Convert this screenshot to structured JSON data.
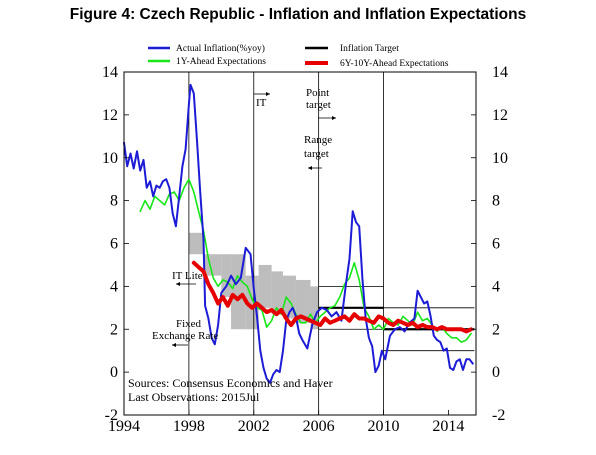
{
  "title": "Figure 4: Czech Republic - Inflation and Inflation Expectations",
  "colors": {
    "actual": "#1c1cd6",
    "expect1y": "#19e619",
    "target": "#000000",
    "expect6_10": "#e60000",
    "band": "#bdbdbd"
  },
  "chart_data": {
    "type": "line",
    "xlim": [
      1994,
      2015.7
    ],
    "ylim": [
      -2,
      14
    ],
    "x_ticks": [
      "1994",
      "1998",
      "2002",
      "2006",
      "2010",
      "2014"
    ],
    "y_ticks_left": [
      "14",
      "12",
      "10",
      "8",
      "6",
      "4",
      "2",
      "0",
      "-2"
    ],
    "y_ticks_right": [
      "14",
      "12",
      "10",
      "8",
      "6",
      "4",
      "2",
      "0",
      "-2"
    ],
    "legend": {
      "actual": "Actual Inflation(%yoy)",
      "expect1y": "1Y-Ahead Expectations",
      "target": "Inflation Target",
      "expect6_10": "6Y-10Y-Ahead Expectations"
    },
    "annotations": {
      "it": "IT",
      "point_target_1": "Point",
      "point_target_2": "target",
      "range_target_1": "Range",
      "range_target_2": "target",
      "it_lite": "IT Lite",
      "fixed_1": "Fixed",
      "fixed_2": "Exchange Rate",
      "sources": "Sources: Consensus Economics and Haver",
      "last_obs": "Last Observations: 2015Jul"
    },
    "vertical_lines": [
      1998,
      2002,
      2006,
      2010
    ],
    "target_bands": [
      {
        "x0": 1998.0,
        "x1": 1998.9,
        "y0": 5.5,
        "y1": 6.5
      },
      {
        "x0": 1998.9,
        "x1": 2000.0,
        "y0": 4.5,
        "y1": 5.5
      },
      {
        "x0": 2000.0,
        "x1": 2000.6,
        "y0": 3.5,
        "y1": 5.5
      },
      {
        "x0": 2000.6,
        "x1": 2001.5,
        "y0": 2.0,
        "y1": 5.5
      },
      {
        "x0": 2001.5,
        "x1": 2002.3,
        "y0": 2.0,
        "y1": 4.5
      },
      {
        "x0": 2002.3,
        "x1": 2003.1,
        "y0": 3.0,
        "y1": 5.0
      },
      {
        "x0": 2003.1,
        "x1": 2003.8,
        "y0": 2.7,
        "y1": 4.7
      },
      {
        "x0": 2003.8,
        "x1": 2004.6,
        "y0": 2.5,
        "y1": 4.5
      },
      {
        "x0": 2004.6,
        "x1": 2005.5,
        "y0": 2.3,
        "y1": 4.3
      },
      {
        "x0": 2005.5,
        "x1": 2006.0,
        "y0": 2.0,
        "y1": 4.0
      }
    ],
    "target_segments": [
      {
        "x0": 2006.0,
        "x1": 2010.0,
        "y": 3.0,
        "kind": "point"
      },
      {
        "x0": 2006.0,
        "x1": 2010.0,
        "y": 4.0,
        "kind": "range"
      },
      {
        "x0": 2006.0,
        "x1": 2010.0,
        "y": 2.0,
        "kind": "range"
      },
      {
        "x0": 2010.0,
        "x1": 2015.6,
        "y": 2.0,
        "kind": "point"
      },
      {
        "x0": 2010.0,
        "x1": 2015.6,
        "y": 3.0,
        "kind": "range"
      },
      {
        "x0": 2010.0,
        "x1": 2015.6,
        "y": 1.0,
        "kind": "range"
      }
    ],
    "series": [
      {
        "name": "Actual Inflation(%yoy)",
        "key": "actual",
        "x": [
          1994.0,
          1994.2,
          1994.4,
          1994.6,
          1994.8,
          1995.0,
          1995.2,
          1995.4,
          1995.6,
          1995.8,
          1996.0,
          1996.2,
          1996.4,
          1996.6,
          1996.8,
          1997.0,
          1997.2,
          1997.4,
          1997.6,
          1997.8,
          1998.0,
          1998.1,
          1998.3,
          1998.5,
          1998.7,
          1998.9,
          1999.0,
          1999.2,
          1999.4,
          1999.6,
          1999.8,
          2000.0,
          2000.3,
          2000.6,
          2000.9,
          2001.2,
          2001.5,
          2001.8,
          2002.0,
          2002.2,
          2002.4,
          2002.6,
          2002.8,
          2003.0,
          2003.2,
          2003.4,
          2003.6,
          2003.8,
          2004.0,
          2004.2,
          2004.4,
          2004.6,
          2004.8,
          2005.0,
          2005.3,
          2005.6,
          2005.9,
          2006.2,
          2006.5,
          2006.8,
          2007.1,
          2007.4,
          2007.7,
          2007.9,
          2008.1,
          2008.3,
          2008.5,
          2008.7,
          2008.9,
          2009.1,
          2009.3,
          2009.5,
          2009.7,
          2009.9,
          2010.1,
          2010.4,
          2010.7,
          2011.0,
          2011.3,
          2011.6,
          2011.9,
          2012.1,
          2012.3,
          2012.5,
          2012.7,
          2012.9,
          2013.1,
          2013.3,
          2013.5,
          2013.7,
          2013.9,
          2014.1,
          2014.3,
          2014.5,
          2014.7,
          2014.9,
          2015.1,
          2015.3,
          2015.5
        ],
        "y": [
          10.7,
          9.6,
          10.2,
          9.5,
          10.3,
          9.4,
          9.9,
          8.6,
          8.9,
          8.2,
          8.7,
          8.6,
          8.9,
          9.0,
          8.6,
          7.4,
          6.8,
          8.2,
          9.6,
          10.4,
          12.5,
          13.4,
          13.0,
          10.8,
          8.4,
          6.2,
          3.1,
          2.5,
          1.6,
          1.3,
          2.2,
          3.7,
          4.0,
          4.5,
          4.1,
          4.4,
          5.8,
          5.5,
          3.9,
          2.6,
          1.0,
          0.2,
          -0.3,
          -0.5,
          -0.1,
          0.1,
          0.0,
          1.0,
          2.4,
          2.8,
          3.0,
          2.6,
          1.8,
          1.5,
          1.1,
          2.2,
          2.8,
          3.0,
          2.9,
          2.6,
          2.8,
          2.4,
          4.2,
          5.3,
          7.5,
          7.0,
          6.8,
          4.3,
          2.5,
          1.6,
          1.2,
          0.0,
          0.3,
          1.0,
          0.6,
          1.7,
          2.0,
          2.1,
          1.9,
          2.3,
          2.5,
          3.8,
          3.5,
          3.2,
          3.3,
          2.6,
          1.7,
          1.5,
          1.4,
          1.0,
          1.1,
          0.2,
          0.1,
          0.5,
          0.6,
          0.1,
          0.6,
          0.6,
          0.4
        ]
      },
      {
        "name": "1Y-Ahead Expectations",
        "key": "expect1y",
        "x": [
          1995.0,
          1995.3,
          1995.6,
          1995.9,
          1996.2,
          1996.5,
          1996.8,
          1997.1,
          1997.4,
          1997.7,
          1998.0,
          1998.3,
          1998.6,
          1998.9,
          1999.2,
          1999.5,
          1999.8,
          2000.1,
          2000.4,
          2000.7,
          2001.0,
          2001.3,
          2001.6,
          2001.9,
          2002.2,
          2002.5,
          2002.8,
          2003.1,
          2003.4,
          2003.7,
          2004.0,
          2004.3,
          2004.6,
          2004.9,
          2005.2,
          2005.5,
          2005.8,
          2006.1,
          2006.4,
          2006.7,
          2007.0,
          2007.3,
          2007.6,
          2007.9,
          2008.2,
          2008.5,
          2008.8,
          2009.1,
          2009.4,
          2009.7,
          2010.0,
          2010.3,
          2010.6,
          2010.9,
          2011.2,
          2011.5,
          2011.8,
          2012.1,
          2012.4,
          2012.7,
          2013.0,
          2013.3,
          2013.6,
          2013.9,
          2014.2,
          2014.5,
          2014.8,
          2015.1,
          2015.4
        ],
        "y": [
          7.5,
          8.0,
          7.6,
          8.2,
          8.0,
          7.8,
          8.3,
          8.4,
          8.0,
          8.6,
          9.0,
          8.4,
          7.5,
          6.6,
          5.3,
          4.4,
          4.0,
          4.3,
          4.2,
          3.9,
          4.5,
          4.2,
          4.0,
          3.4,
          3.0,
          2.9,
          2.1,
          2.4,
          3.0,
          2.7,
          3.5,
          3.2,
          2.7,
          2.3,
          2.3,
          2.7,
          2.3,
          2.6,
          2.8,
          3.0,
          3.1,
          3.5,
          4.1,
          4.4,
          5.1,
          4.3,
          3.0,
          2.6,
          2.0,
          2.2,
          2.0,
          2.5,
          2.3,
          2.2,
          2.6,
          2.4,
          2.2,
          2.8,
          2.4,
          2.5,
          2.2,
          1.9,
          2.1,
          1.8,
          1.6,
          1.6,
          1.4,
          1.5,
          1.8
        ]
      },
      {
        "name": "6Y-10Y-Ahead Expectations",
        "key": "expect6_10",
        "x": [
          1998.3,
          1998.6,
          1998.9,
          1999.2,
          1999.5,
          1999.8,
          2000.1,
          2000.4,
          2000.7,
          2001.0,
          2001.3,
          2001.6,
          2001.9,
          2002.2,
          2002.5,
          2002.8,
          2003.1,
          2003.4,
          2003.7,
          2004.0,
          2004.3,
          2004.6,
          2004.9,
          2005.2,
          2005.5,
          2005.8,
          2006.1,
          2006.4,
          2006.7,
          2007.0,
          2007.3,
          2007.6,
          2007.9,
          2008.2,
          2008.5,
          2008.8,
          2009.1,
          2009.4,
          2009.7,
          2010.0,
          2010.3,
          2010.6,
          2010.9,
          2011.2,
          2011.5,
          2011.8,
          2012.1,
          2012.4,
          2012.7,
          2013.0,
          2013.3,
          2013.6,
          2013.9,
          2014.2,
          2014.5,
          2014.8,
          2015.1,
          2015.4
        ],
        "y": [
          5.1,
          4.9,
          4.7,
          4.1,
          3.7,
          3.2,
          3.5,
          3.1,
          3.6,
          3.4,
          3.6,
          3.2,
          3.0,
          3.2,
          3.0,
          2.8,
          2.9,
          2.7,
          2.9,
          2.5,
          2.2,
          2.5,
          2.6,
          2.5,
          2.4,
          2.3,
          2.2,
          2.5,
          2.3,
          2.4,
          2.5,
          2.6,
          2.4,
          2.7,
          2.5,
          2.5,
          2.4,
          2.3,
          2.6,
          2.5,
          2.3,
          2.2,
          2.4,
          2.3,
          2.2,
          2.3,
          2.1,
          2.2,
          2.1,
          2.1,
          2.0,
          2.1,
          2.0,
          2.0,
          2.0,
          2.0,
          1.9,
          2.0
        ]
      }
    ]
  }
}
